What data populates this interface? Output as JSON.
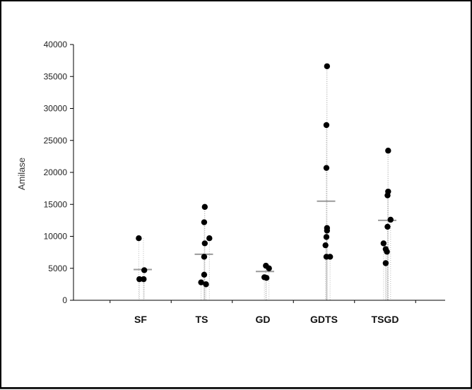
{
  "chart_data": {
    "type": "scatter",
    "title": "",
    "xlabel": "",
    "ylabel": "Amilase",
    "ylim": [
      0,
      40000
    ],
    "yticks": [
      0,
      5000,
      10000,
      15000,
      20000,
      25000,
      30000,
      35000,
      40000
    ],
    "grid": false,
    "categories": [
      "SF",
      "TS",
      "GD",
      "GDTS",
      "TSGD"
    ],
    "series": [
      {
        "category": "SF",
        "points": [
          {
            "offset": -0.06,
            "value": 9700
          },
          {
            "offset": 0.12,
            "value": 4700
          },
          {
            "offset": -0.04,
            "value": 3300
          },
          {
            "offset": 0.1,
            "value": 3300
          }
        ],
        "mean": 4800
      },
      {
        "category": "TS",
        "points": [
          {
            "offset": 0.1,
            "value": 14600
          },
          {
            "offset": 0.08,
            "value": 12200
          },
          {
            "offset": 0.25,
            "value": 9700
          },
          {
            "offset": 0.1,
            "value": 8900
          },
          {
            "offset": 0.08,
            "value": 6800
          },
          {
            "offset": 0.08,
            "value": 4000
          },
          {
            "offset": -0.02,
            "value": 2800
          },
          {
            "offset": 0.14,
            "value": 2500
          }
        ],
        "mean": 7200
      },
      {
        "category": "GD",
        "points": [
          {
            "offset": 0.1,
            "value": 5400
          },
          {
            "offset": 0.2,
            "value": 5000
          },
          {
            "offset": 0.05,
            "value": 3600
          },
          {
            "offset": 0.12,
            "value": 3500
          }
        ],
        "mean": 4500
      },
      {
        "category": "GDTS",
        "points": [
          {
            "offset": 0.1,
            "value": 36600
          },
          {
            "offset": 0.08,
            "value": 27400
          },
          {
            "offset": 0.08,
            "value": 20700
          },
          {
            "offset": 0.1,
            "value": 11300
          },
          {
            "offset": 0.1,
            "value": 10900
          },
          {
            "offset": 0.08,
            "value": 9900
          },
          {
            "offset": 0.05,
            "value": 8600
          },
          {
            "offset": 0.08,
            "value": 6800
          },
          {
            "offset": 0.2,
            "value": 6800
          }
        ],
        "mean": 15500
      },
      {
        "category": "TSGD",
        "points": [
          {
            "offset": 0.1,
            "value": 23400
          },
          {
            "offset": 0.1,
            "value": 17000
          },
          {
            "offset": 0.08,
            "value": 16400
          },
          {
            "offset": 0.18,
            "value": 12600
          },
          {
            "offset": 0.08,
            "value": 11500
          },
          {
            "offset": -0.05,
            "value": 8900
          },
          {
            "offset": 0.02,
            "value": 8000
          },
          {
            "offset": 0.06,
            "value": 7600
          },
          {
            "offset": 0.02,
            "value": 5800
          }
        ],
        "mean": 12500
      }
    ],
    "colors": {
      "point": "#000000",
      "mean": "#9a9a9a",
      "whisker": "#b8b8b8",
      "axis": "#000000"
    }
  }
}
